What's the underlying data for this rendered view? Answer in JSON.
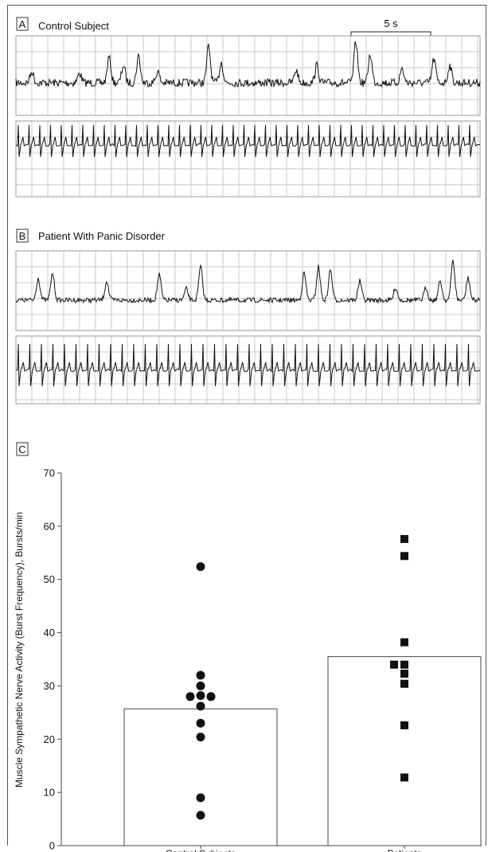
{
  "panels": {
    "a": {
      "letter": "A",
      "title": "Control Subject",
      "scale_label": "5 s"
    },
    "b": {
      "letter": "B",
      "title": "Patient With Panic Disorder"
    },
    "c": {
      "letter": "C"
    }
  },
  "colors": {
    "ink": "#111111",
    "grid": "#c8c8c8",
    "frame": "#444444"
  },
  "chart_data": {
    "type": "bar",
    "title": "",
    "xlabel": "",
    "ylabel": "Muscle Sympathetic Nerve Activity (Burst Frequency), Bursts/min",
    "ylim": [
      0,
      70
    ],
    "yticks": [
      0,
      10,
      20,
      30,
      40,
      50,
      60,
      70
    ],
    "categories": [
      "Control Subjects",
      "Patients"
    ],
    "values": [
      25.7,
      35.5
    ],
    "series": [
      {
        "name": "Control Subjects",
        "marker": "circle",
        "points": [
          52.4,
          32,
          30,
          28.2,
          28,
          28,
          26.2,
          23,
          20.4,
          9,
          5.7
        ]
      },
      {
        "name": "Patients",
        "marker": "square",
        "points": [
          57.6,
          54.4,
          38.2,
          34,
          34,
          32.3,
          30.4,
          22.6,
          12.8
        ]
      }
    ]
  }
}
